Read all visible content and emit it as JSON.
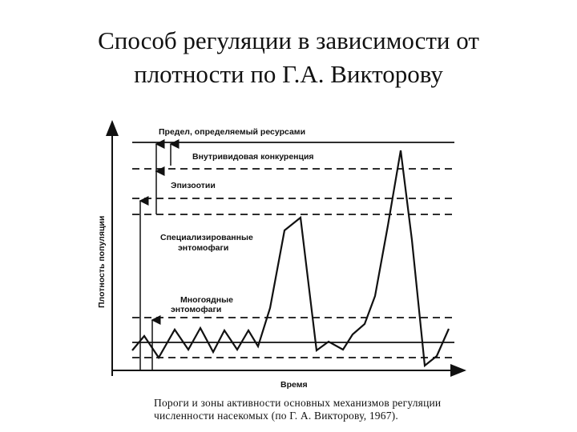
{
  "title": {
    "line1": "Способ регуляции в зависимости от",
    "line2": "плотности по Г.А. Викторову"
  },
  "diagram": {
    "y_axis_label": "Плотность популяции",
    "x_axis_label": "Время",
    "zones": {
      "resource_limit": "Предел, определяемый ресурсами",
      "intraspecific": "Внутривидовая конкуренция",
      "epizootics": "Эпизоотии",
      "specialized_line1": "Специализированные",
      "specialized_line2": "энтомофаги",
      "polyphagous_line1": "Многоядные",
      "polyphagous_line2": "энтомофаги"
    }
  },
  "caption": {
    "line1": "Пороги и зоны активности основных механизмов регуляции",
    "line2": "численности насекомых (по Г. А. Викторову, 1967)."
  }
}
